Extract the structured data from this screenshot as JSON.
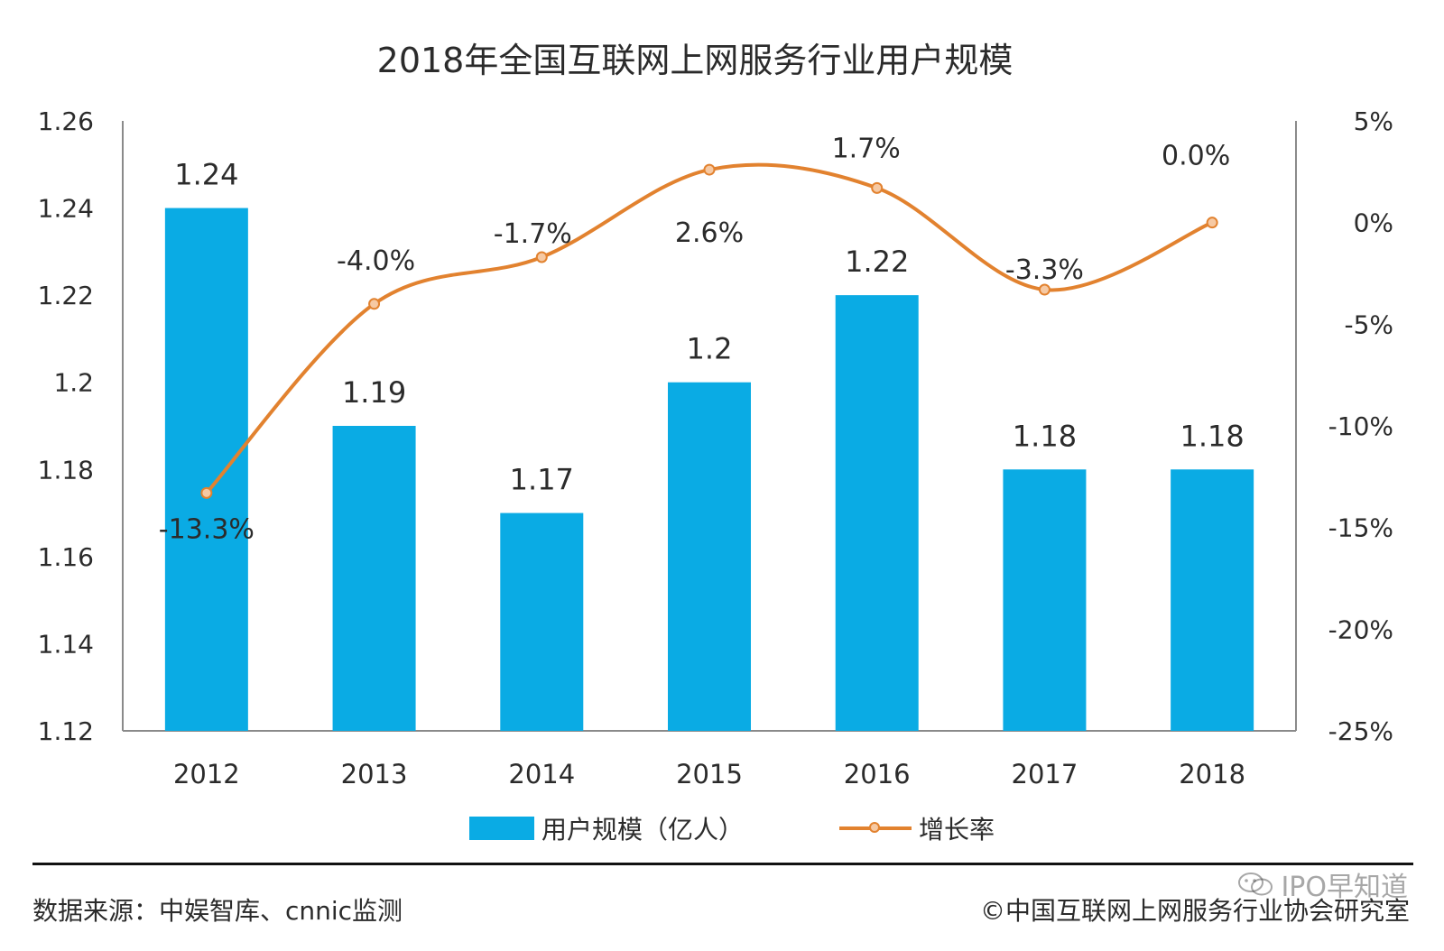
{
  "chart_data": {
    "type": "bar",
    "title": "2018年全国互联网上网服务行业用户规模",
    "categories": [
      "2012",
      "2013",
      "2014",
      "2015",
      "2016",
      "2017",
      "2018"
    ],
    "series": [
      {
        "name": "用户规模（亿人）",
        "type": "bar",
        "axis": "left",
        "values": [
          1.24,
          1.19,
          1.17,
          1.2,
          1.22,
          1.18,
          1.18
        ],
        "labels": [
          "1.24",
          "1.19",
          "1.17",
          "1.2",
          "1.22",
          "1.18",
          "1.18"
        ]
      },
      {
        "name": "增长率",
        "type": "line",
        "axis": "right",
        "values": [
          -13.3,
          -4.0,
          -1.7,
          2.6,
          1.7,
          -3.3,
          0.0
        ],
        "labels": [
          "-13.3%",
          "-4.0%",
          "-1.7%",
          "2.6%",
          "1.7%",
          "-3.3%",
          "0.0%"
        ]
      }
    ],
    "y_left": {
      "min": 1.12,
      "max": 1.26,
      "ticks": [
        "1.26",
        "1.24",
        "1.22",
        "1.2",
        "1.18",
        "1.16",
        "1.14",
        "1.12"
      ]
    },
    "y_right": {
      "min": -25,
      "max": 5,
      "ticks": [
        "5%",
        "0%",
        "-5%",
        "-10%",
        "-15%",
        "-20%",
        "-25%"
      ]
    },
    "grid": false,
    "legend_position": "bottom",
    "colors": {
      "bar": "#0aabe4",
      "line": "#e2822f",
      "axis": "#8a8a8a",
      "text": "#2b2b2b"
    }
  },
  "footer": {
    "source": "数据来源：中娱智库、cnnic监测",
    "copyright": "©中国互联网上网服务行业协会研究室",
    "watermark": "IPO早知道",
    "watermark_icon": "wechat-icon"
  }
}
